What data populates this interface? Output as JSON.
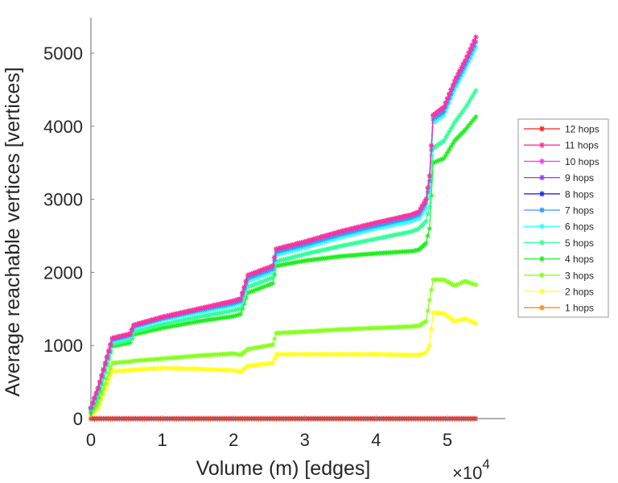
{
  "chart_data": {
    "type": "line",
    "title": "",
    "xlabel": "Volume (m) [edges]",
    "ylabel": "Average reachable vertices [vertices]",
    "x_multiplier_label": "×10",
    "x_multiplier_exponent": "4",
    "xlim": [
      0,
      5.82
    ],
    "ylim": [
      0,
      5400
    ],
    "xticks": [
      0,
      1,
      2,
      3,
      4,
      5
    ],
    "xtick_labels": [
      "0",
      "1",
      "2",
      "3",
      "4",
      "5"
    ],
    "yticks": [
      0,
      1000,
      2000,
      3000,
      4000,
      5000
    ],
    "ytick_labels": [
      "0",
      "1000",
      "2000",
      "3000",
      "4000",
      "5000"
    ],
    "grid": false,
    "legend_position": "right",
    "marker": "asterisk",
    "x": [
      0,
      0.1,
      0.3,
      0.55,
      0.6,
      1.0,
      1.5,
      2.0,
      2.1,
      2.2,
      2.55,
      2.6,
      3.0,
      3.5,
      4.0,
      4.5,
      4.6,
      4.7,
      4.75,
      4.8,
      4.95,
      5.1,
      5.25,
      5.4
    ],
    "series": [
      {
        "name": "12 hops",
        "color": "#ff2020",
        "values": [
          0,
          0,
          0,
          0,
          0,
          0,
          0,
          0,
          0,
          0,
          0,
          0,
          0,
          0,
          0,
          0,
          0,
          0,
          0,
          0,
          0,
          0,
          0,
          0
        ]
      },
      {
        "name": "11 hops",
        "color": "#ff3399",
        "values": [
          150,
          420,
          1100,
          1160,
          1280,
          1390,
          1500,
          1610,
          1640,
          1960,
          2090,
          2320,
          2420,
          2560,
          2680,
          2790,
          2830,
          3000,
          3320,
          4150,
          4260,
          4620,
          4900,
          5220
        ]
      },
      {
        "name": "10 hops",
        "color": "#ff33ff",
        "values": [
          150,
          420,
          1100,
          1160,
          1280,
          1390,
          1500,
          1610,
          1640,
          1960,
          2090,
          2320,
          2420,
          2560,
          2680,
          2790,
          2830,
          3000,
          3320,
          4150,
          4260,
          4620,
          4900,
          5220
        ]
      },
      {
        "name": "9 hops",
        "color": "#9933ff",
        "values": [
          150,
          420,
          1100,
          1160,
          1280,
          1390,
          1500,
          1610,
          1640,
          1960,
          2090,
          2320,
          2420,
          2560,
          2680,
          2790,
          2830,
          3000,
          3320,
          4150,
          4260,
          4620,
          4900,
          5220
        ]
      },
      {
        "name": "8 hops",
        "color": "#2020ff",
        "values": [
          150,
          420,
          1100,
          1160,
          1280,
          1390,
          1500,
          1610,
          1640,
          1960,
          2090,
          2320,
          2420,
          2560,
          2680,
          2790,
          2830,
          3000,
          3320,
          4150,
          4260,
          4620,
          4900,
          5220
        ]
      },
      {
        "name": "7 hops",
        "color": "#3399ff",
        "values": [
          140,
          400,
          1080,
          1140,
          1260,
          1370,
          1480,
          1580,
          1610,
          1920,
          2050,
          2280,
          2380,
          2520,
          2640,
          2750,
          2790,
          2950,
          3250,
          4100,
          4200,
          4560,
          4840,
          5150
        ]
      },
      {
        "name": "6 hops",
        "color": "#33ffff",
        "values": [
          130,
          380,
          1060,
          1120,
          1240,
          1350,
          1450,
          1550,
          1580,
          1880,
          2010,
          2240,
          2340,
          2480,
          2600,
          2700,
          2740,
          2880,
          3150,
          4050,
          4150,
          4500,
          4780,
          5080
        ]
      },
      {
        "name": "5 hops",
        "color": "#33ff99",
        "values": [
          110,
          340,
          1020,
          1080,
          1190,
          1290,
          1390,
          1480,
          1510,
          1800,
          1930,
          2150,
          2250,
          2360,
          2460,
          2560,
          2600,
          2700,
          2900,
          3700,
          3800,
          4050,
          4250,
          4490
        ]
      },
      {
        "name": "4 hops",
        "color": "#20ee20",
        "values": [
          90,
          290,
          990,
          1040,
          1150,
          1240,
          1330,
          1400,
          1430,
          1720,
          1850,
          2090,
          2160,
          2220,
          2260,
          2290,
          2310,
          2400,
          2600,
          3500,
          3560,
          3800,
          3950,
          4130
        ]
      },
      {
        "name": "3 hops",
        "color": "#88ff22",
        "values": [
          60,
          200,
          760,
          780,
          790,
          820,
          860,
          890,
          870,
          950,
          1010,
          1170,
          1190,
          1220,
          1240,
          1260,
          1270,
          1330,
          1620,
          1900,
          1900,
          1820,
          1880,
          1830
        ]
      },
      {
        "name": "2 hops",
        "color": "#ffff20",
        "values": [
          40,
          140,
          650,
          660,
          670,
          690,
          680,
          660,
          640,
          720,
          760,
          880,
          880,
          880,
          880,
          870,
          870,
          900,
          1000,
          1450,
          1440,
          1330,
          1370,
          1300
        ]
      },
      {
        "name": "1 hops",
        "color": "#ff8820",
        "values": [
          0,
          0,
          0,
          0,
          0,
          0,
          0,
          0,
          0,
          0,
          0,
          0,
          0,
          0,
          0,
          0,
          0,
          0,
          0,
          0,
          0,
          0,
          0,
          0
        ]
      }
    ]
  }
}
